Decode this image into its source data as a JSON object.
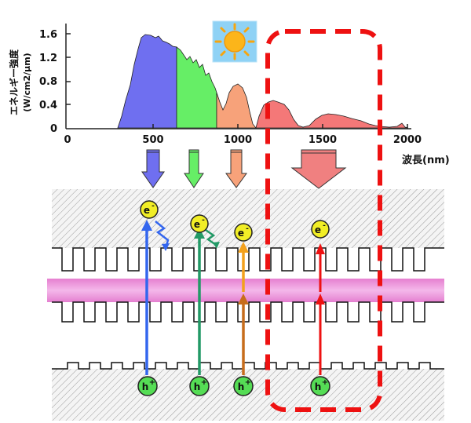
{
  "spectrum": {
    "ylabel": "エネルギー強度",
    "ylabel_unit": "(W/cm2/μm)",
    "xlabel": "波長(nm)",
    "y_ticks": [
      "1.6",
      "1.2",
      "0.8",
      "0.4",
      "0"
    ],
    "x_ticks": [
      "0",
      "500",
      "1000",
      "1500",
      "2000"
    ],
    "bands": [
      {
        "name": "blue",
        "from_nm": 300,
        "to_nm": 650,
        "color": "#6f6ff0"
      },
      {
        "name": "green",
        "from_nm": 650,
        "to_nm": 890,
        "color": "#66ee66"
      },
      {
        "name": "orange",
        "from_nm": 890,
        "to_nm": 1130,
        "color": "#f7a27a"
      },
      {
        "name": "red",
        "from_nm": 1130,
        "to_nm": 2000,
        "color": "#f47878"
      }
    ]
  },
  "sun_icon": "sun-icon",
  "highlight_box_color": "#ee1111",
  "carriers": {
    "electron": "e",
    "electron_sign": "-",
    "hole": "h",
    "hole_sign": "+"
  },
  "colors": {
    "blue": "#3366ee",
    "green": "#229966",
    "orange": "#f3a11c",
    "red": "#ee1111",
    "electron": "#f1ee26",
    "hole": "#55dd55",
    "quantum_well": "#ee7fd6"
  }
}
